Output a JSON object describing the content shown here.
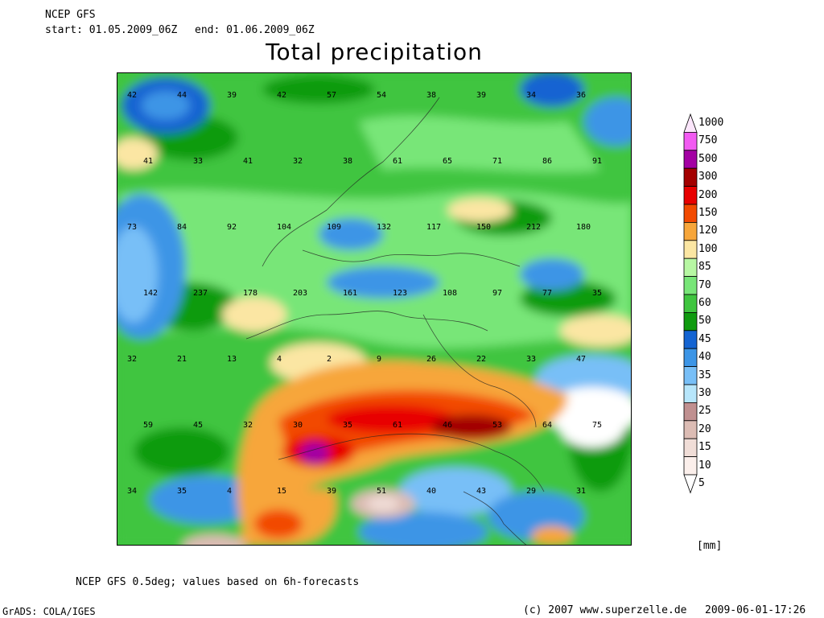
{
  "header": {
    "model": "NCEP GFS",
    "start": "start: 01.05.2009_06Z",
    "end": "end: 01.06.2009_06Z"
  },
  "title": "Total precipitation",
  "legend": {
    "unit": "[mm]",
    "classes": [
      {
        "label": "1000",
        "color": "#fbe6fb"
      },
      {
        "label": "750",
        "color": "#f25af2"
      },
      {
        "label": "500",
        "color": "#a300a3"
      },
      {
        "label": "300",
        "color": "#a30000"
      },
      {
        "label": "200",
        "color": "#e80000"
      },
      {
        "label": "150",
        "color": "#f24a00"
      },
      {
        "label": "120",
        "color": "#f7a63a"
      },
      {
        "label": "100",
        "color": "#fbe6a3"
      },
      {
        "label": "85",
        "color": "#b7f7a3"
      },
      {
        "label": "70",
        "color": "#78e678"
      },
      {
        "label": "60",
        "color": "#3fc53f"
      },
      {
        "label": "50",
        "color": "#0f9b0f"
      },
      {
        "label": "45",
        "color": "#1464d2"
      },
      {
        "label": "40",
        "color": "#3c95e6"
      },
      {
        "label": "35",
        "color": "#78bff7"
      },
      {
        "label": "30",
        "color": "#b7e6fb"
      },
      {
        "label": "25",
        "color": "#c09090"
      },
      {
        "label": "20",
        "color": "#dcbcb4"
      },
      {
        "label": "15",
        "color": "#f0ddd7"
      },
      {
        "label": "10",
        "color": "#fbefeb"
      },
      {
        "label": "5",
        "color": "#ffffff"
      }
    ]
  },
  "footer": {
    "caption": "NCEP GFS 0.5deg; values based on 6h-forecasts",
    "software": "GrADS: COLA/IGES",
    "copyright": "(c) 2007 www.superzelle.de",
    "timestamp": "2009-06-01-17:26"
  },
  "map": {
    "station_values": [
      {
        "v": "42"
      },
      {
        "v": "44"
      },
      {
        "v": "39"
      },
      {
        "v": "42"
      },
      {
        "v": "57"
      },
      {
        "v": "54"
      },
      {
        "v": "38"
      },
      {
        "v": "39"
      },
      {
        "v": "34"
      },
      {
        "v": "36"
      },
      {
        "v": "41"
      },
      {
        "v": "33"
      },
      {
        "v": "41"
      },
      {
        "v": "32"
      },
      {
        "v": "38"
      },
      {
        "v": "61"
      },
      {
        "v": "65"
      },
      {
        "v": "71"
      },
      {
        "v": "86"
      },
      {
        "v": "91"
      },
      {
        "v": "73"
      },
      {
        "v": "84"
      },
      {
        "v": "92"
      },
      {
        "v": "104"
      },
      {
        "v": "109"
      },
      {
        "v": "132"
      },
      {
        "v": "117"
      },
      {
        "v": "150"
      },
      {
        "v": "212"
      },
      {
        "v": "180"
      },
      {
        "v": "142"
      },
      {
        "v": "237"
      },
      {
        "v": "178"
      },
      {
        "v": "203"
      },
      {
        "v": "161"
      },
      {
        "v": "123"
      },
      {
        "v": "108"
      },
      {
        "v": "97"
      },
      {
        "v": "77"
      },
      {
        "v": "35"
      },
      {
        "v": "32"
      },
      {
        "v": "21"
      },
      {
        "v": "13"
      },
      {
        "v": "4"
      },
      {
        "v": "2"
      },
      {
        "v": "9"
      },
      {
        "v": "26"
      },
      {
        "v": "22"
      },
      {
        "v": "33"
      },
      {
        "v": "47"
      },
      {
        "v": "59"
      },
      {
        "v": "45"
      },
      {
        "v": "32"
      },
      {
        "v": "30"
      },
      {
        "v": "35"
      },
      {
        "v": "61"
      },
      {
        "v": "46"
      },
      {
        "v": "53"
      },
      {
        "v": "64"
      },
      {
        "v": "75"
      },
      {
        "v": "34"
      },
      {
        "v": "35"
      },
      {
        "v": "4"
      },
      {
        "v": "15"
      },
      {
        "v": "39"
      },
      {
        "v": "51"
      },
      {
        "v": "40"
      },
      {
        "v": "43"
      },
      {
        "v": "29"
      },
      {
        "v": "31"
      }
    ]
  }
}
